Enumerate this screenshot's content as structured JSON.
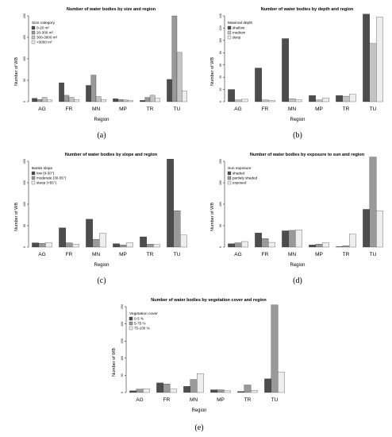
{
  "figure": {
    "panel_a": {
      "caption": "(a)"
    },
    "panel_b": {
      "caption": "(b)"
    },
    "panel_c": {
      "caption": "(c)"
    },
    "panel_d": {
      "caption": "(d)"
    },
    "panel_e": {
      "caption": "(e)"
    }
  },
  "chart_data": [
    {
      "type": "bar",
      "title": "Number of water bodies by size and region",
      "xlabel": "Region",
      "ylabel": "Number of WB",
      "ylim": [
        0,
        200
      ],
      "yticks": [
        0,
        50,
        100,
        150,
        200
      ],
      "categories": [
        "AG",
        "FR",
        "MN",
        "MP",
        "TR",
        "TU"
      ],
      "legend_title": "Size category",
      "legend_placement": "top-left",
      "series": [
        {
          "name": "0-20 m²",
          "color": "#4d4d4d",
          "values": [
            8,
            44,
            38,
            7,
            3,
            52
          ]
        },
        {
          "name": "20-300 m²",
          "color": "#999999",
          "values": [
            5,
            15,
            62,
            5,
            10,
            200
          ]
        },
        {
          "name": "300-3000 m²",
          "color": "#c4c4c4",
          "values": [
            10,
            10,
            12,
            4,
            15,
            115
          ]
        },
        {
          "name": ">3000 m²",
          "color": "#eeeeee",
          "values": [
            4,
            5,
            5,
            3,
            8,
            25
          ]
        }
      ]
    },
    {
      "type": "bar",
      "title": "Number of water bodies by depth and region",
      "xlabel": "Region",
      "ylabel": "Number of WB",
      "ylim": [
        0,
        140
      ],
      "yticks": [
        0,
        20,
        40,
        60,
        80,
        100,
        120,
        140
      ],
      "categories": [
        "AG",
        "FR",
        "MN",
        "MP",
        "TR",
        "TU"
      ],
      "legend_title": "Maximal depth",
      "legend_placement": "top-left",
      "series": [
        {
          "name": "shallow",
          "color": "#4d4d4d",
          "values": [
            20,
            55,
            103,
            10,
            10,
            143
          ]
        },
        {
          "name": "medium",
          "color": "#c4c4c4",
          "values": [
            3,
            3,
            5,
            3,
            9,
            95
          ]
        },
        {
          "name": "deep",
          "color": "#eeeeee",
          "values": [
            4,
            2,
            3,
            6,
            12,
            138
          ]
        }
      ]
    },
    {
      "type": "bar",
      "title": "Number of water bodies by slope and region",
      "xlabel": "Region",
      "ylabel": "Number of WB",
      "ylim": [
        0,
        200
      ],
      "yticks": [
        0,
        50,
        100,
        150,
        200
      ],
      "categories": [
        "AG",
        "FR",
        "MN",
        "MP",
        "TR",
        "TU"
      ],
      "legend_title": "Banks slope",
      "legend_placement": "top-left",
      "series": [
        {
          "name": "low (0-30°)",
          "color": "#4d4d4d",
          "values": [
            10,
            45,
            65,
            8,
            24,
            205
          ]
        },
        {
          "name": "moderate (30-55°)",
          "color": "#999999",
          "values": [
            9,
            10,
            18,
            5,
            7,
            85
          ]
        },
        {
          "name": "steep (>55°)",
          "color": "#eeeeee",
          "values": [
            10,
            7,
            32,
            10,
            6,
            28
          ]
        }
      ]
    },
    {
      "type": "bar",
      "title": "Number of water bodies by exposure to sun and region",
      "xlabel": "Region",
      "ylabel": "Number of WB",
      "ylim": [
        0,
        200
      ],
      "yticks": [
        0,
        50,
        100,
        150,
        200
      ],
      "categories": [
        "AG",
        "FR",
        "MN",
        "MP",
        "TR",
        "TU"
      ],
      "legend_title": "Sun exposure",
      "legend_placement": "top-left",
      "series": [
        {
          "name": "shaded",
          "color": "#4d4d4d",
          "values": [
            8,
            33,
            38,
            5,
            1,
            88
          ]
        },
        {
          "name": "partialy shaded",
          "color": "#999999",
          "values": [
            10,
            20,
            39,
            7,
            3,
            210
          ]
        },
        {
          "name": "exposed",
          "color": "#eeeeee",
          "values": [
            13,
            11,
            40,
            10,
            30,
            85
          ]
        }
      ]
    },
    {
      "type": "bar",
      "title": "Number of water bodies by vegetation cover and region",
      "xlabel": "Region",
      "ylabel": "Number of WB",
      "ylim": [
        0,
        250
      ],
      "yticks": [
        0,
        50,
        100,
        150,
        200,
        250
      ],
      "categories": [
        "AG",
        "FR",
        "MN",
        "MP",
        "TR",
        "TU"
      ],
      "legend_title": "Vegetation cover",
      "legend_placement": "top-left",
      "series": [
        {
          "name": "0-5 %",
          "color": "#4d4d4d",
          "values": [
            5,
            28,
            18,
            8,
            3,
            40
          ]
        },
        {
          "name": "5-75 %",
          "color": "#999999",
          "values": [
            10,
            25,
            38,
            8,
            22,
            255
          ]
        },
        {
          "name": "75-100 %",
          "color": "#eeeeee",
          "values": [
            11,
            10,
            55,
            5,
            6,
            60
          ]
        }
      ]
    }
  ]
}
